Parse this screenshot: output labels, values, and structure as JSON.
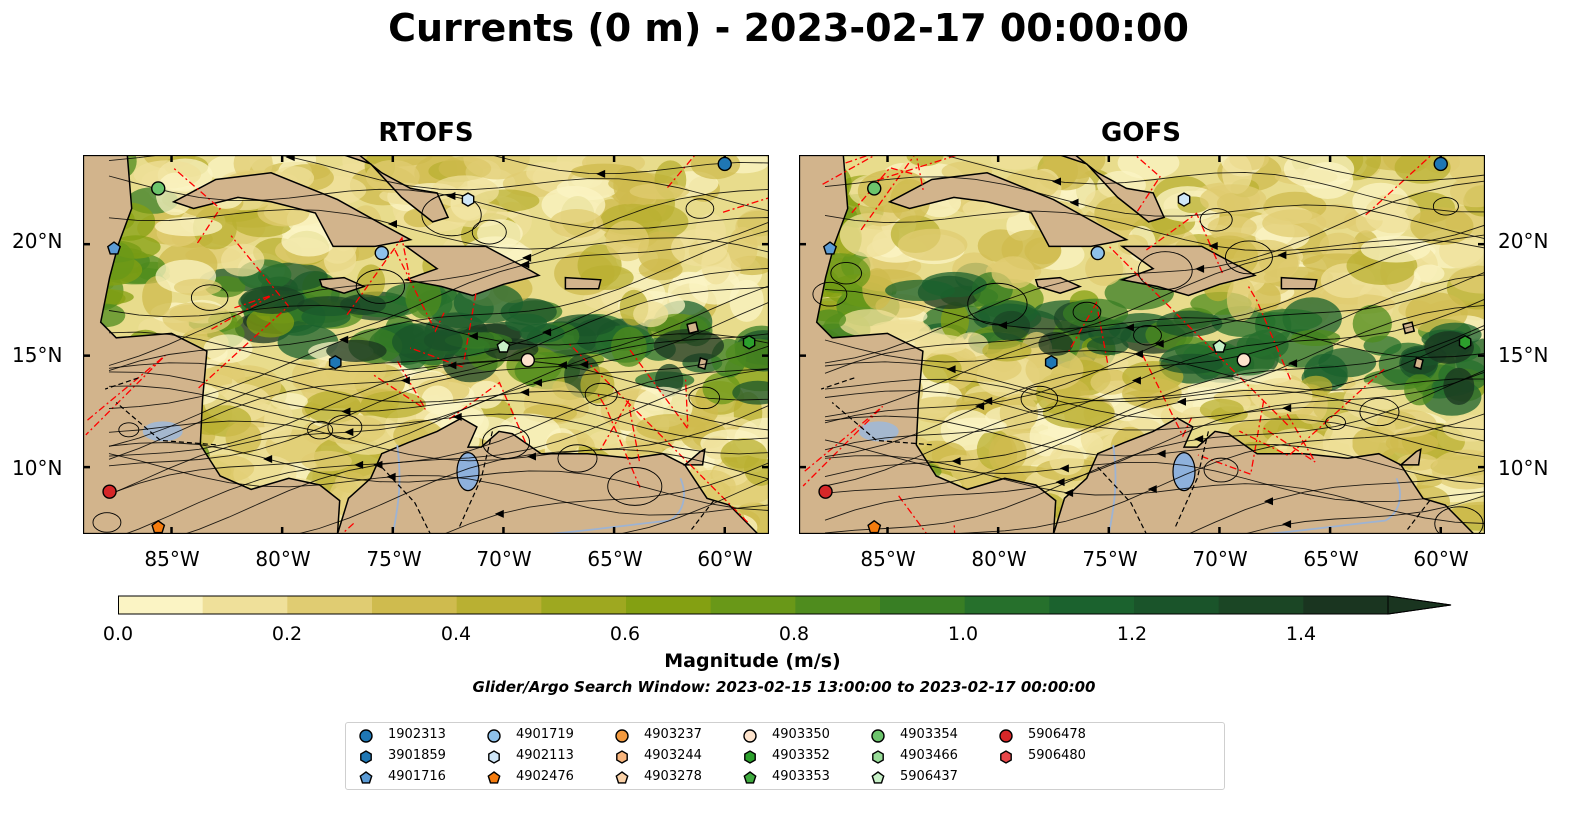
{
  "title": "Currents (0 m) - 2023-02-17 00:00:00",
  "panels": [
    {
      "title": "RTOFS"
    },
    {
      "title": "GOFS"
    }
  ],
  "axes": {
    "lat_ticks": [
      "20°N",
      "15°N",
      "10°N"
    ],
    "lon_ticks": [
      "85°W",
      "80°W",
      "75°W",
      "70°W",
      "65°W",
      "60°W"
    ]
  },
  "colorbar": {
    "label": "Magnitude (m/s)",
    "ticks": [
      "0.0",
      "0.2",
      "0.4",
      "0.6",
      "0.8",
      "1.0",
      "1.2",
      "1.4"
    ],
    "range": [
      0.0,
      1.5
    ],
    "extend": "max",
    "colors": [
      "#fbf4c4",
      "#efe09a",
      "#e0cc72",
      "#cfbb4e",
      "#b9b032",
      "#9ea820",
      "#84a012",
      "#699818",
      "#4f8c1e",
      "#387e24",
      "#26702c",
      "#1b622e",
      "#1a542a",
      "#1b4625",
      "#1a3520"
    ]
  },
  "search_window": "Glider/Argo Search Window: 2023-02-15 13:00:00 to 2023-02-17 00:00:00",
  "legend": [
    {
      "label": "1902313",
      "marker": "circle",
      "color": "#1f77b4"
    },
    {
      "label": "3901859",
      "marker": "hexagon",
      "color": "#1f77b4"
    },
    {
      "label": "4901716",
      "marker": "pentagon",
      "color": "#5b9bd5"
    },
    {
      "label": "4901719",
      "marker": "circle",
      "color": "#8ec1ea"
    },
    {
      "label": "4902113",
      "marker": "hexagon",
      "color": "#cfe6f7"
    },
    {
      "label": "4902476",
      "marker": "pentagon",
      "color": "#f57c0e"
    },
    {
      "label": "4903237",
      "marker": "circle",
      "color": "#f39a3f"
    },
    {
      "label": "4903244",
      "marker": "hexagon",
      "color": "#f8b57d"
    },
    {
      "label": "4903278",
      "marker": "pentagon",
      "color": "#fbd2a8"
    },
    {
      "label": "4903350",
      "marker": "circle",
      "color": "#fde3cc"
    },
    {
      "label": "4903352",
      "marker": "hexagon",
      "color": "#2ca02c"
    },
    {
      "label": "4903353",
      "marker": "pentagon",
      "color": "#3fab3f"
    },
    {
      "label": "4903354",
      "marker": "circle",
      "color": "#6cc46c"
    },
    {
      "label": "4903466",
      "marker": "hexagon",
      "color": "#98dc98"
    },
    {
      "label": "5906437",
      "marker": "pentagon",
      "color": "#c7f0c7"
    },
    {
      "label": "5906478",
      "marker": "circle",
      "color": "#d62728"
    },
    {
      "label": "5906480",
      "marker": "hexagon",
      "color": "#e8474a"
    }
  ],
  "floats_rtofs": [
    {
      "id": "1902313",
      "lon": -60.0,
      "lat": 23.6
    },
    {
      "id": "4903354",
      "lon": -85.6,
      "lat": 22.5
    },
    {
      "id": "4902113",
      "lon": -71.6,
      "lat": 22.0
    },
    {
      "id": "4901716",
      "lon": -87.6,
      "lat": 19.8
    },
    {
      "id": "4901719",
      "lon": -75.5,
      "lat": 19.6
    },
    {
      "id": "3901859",
      "lon": -77.6,
      "lat": 14.7
    },
    {
      "id": "5906437",
      "lon": -70.0,
      "lat": 15.4
    },
    {
      "id": "4903350",
      "lon": -68.9,
      "lat": 14.8
    },
    {
      "id": "4903352",
      "lon": -58.9,
      "lat": 15.6
    },
    {
      "id": "5906478",
      "lon": -87.8,
      "lat": 8.9
    },
    {
      "id": "4902476",
      "lon": -85.6,
      "lat": 7.3
    }
  ],
  "floats_gofs": [
    {
      "id": "1902313",
      "lon": -60.0,
      "lat": 23.6
    },
    {
      "id": "4903354",
      "lon": -85.6,
      "lat": 22.5
    },
    {
      "id": "4902113",
      "lon": -71.6,
      "lat": 22.0
    },
    {
      "id": "4901716",
      "lon": -87.6,
      "lat": 19.8
    },
    {
      "id": "4901719",
      "lon": -75.5,
      "lat": 19.6
    },
    {
      "id": "3901859",
      "lon": -77.6,
      "lat": 14.7
    },
    {
      "id": "5906437",
      "lon": -70.0,
      "lat": 15.4
    },
    {
      "id": "4903350",
      "lon": -68.9,
      "lat": 14.8
    },
    {
      "id": "4903352",
      "lon": -58.9,
      "lat": 15.6
    },
    {
      "id": "5906478",
      "lon": -87.8,
      "lat": 8.9
    },
    {
      "id": "4902476",
      "lon": -85.6,
      "lat": 7.3
    }
  ],
  "map_extent": {
    "lon": [
      -89,
      -58
    ],
    "lat": [
      7,
      24
    ]
  }
}
